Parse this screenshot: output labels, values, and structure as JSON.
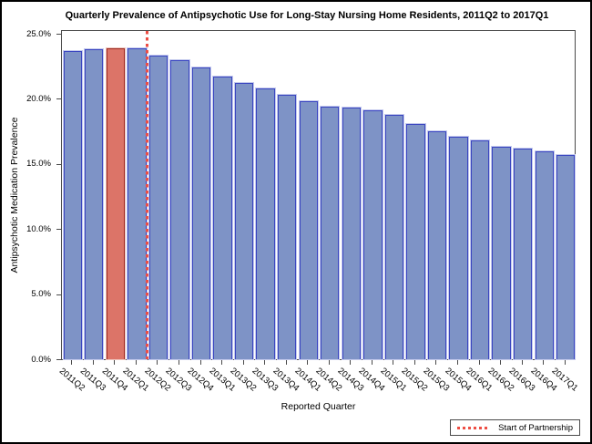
{
  "chart_data": {
    "type": "bar",
    "title": "Quarterly Prevalence of Antipsychotic Use for Long-Stay Nursing Home Residents, 2011Q2 to 2017Q1",
    "xlabel": "Reported Quarter",
    "ylabel": "Antipsychotic Medication Prevalence",
    "categories": [
      "2011Q2",
      "2011Q3",
      "2011Q4",
      "2012Q1",
      "2012Q2",
      "2012Q3",
      "2012Q4",
      "2013Q1",
      "2013Q2",
      "2013Q3",
      "2013Q4",
      "2014Q1",
      "2014Q2",
      "2014Q3",
      "2014Q4",
      "2015Q1",
      "2015Q2",
      "2015Q3",
      "2015Q4",
      "2016Q1",
      "2016Q2",
      "2016Q3",
      "2016Q4",
      "2017Q1"
    ],
    "values": [
      23.7,
      23.8,
      23.9,
      23.9,
      23.3,
      23.0,
      22.4,
      21.7,
      21.2,
      20.8,
      20.3,
      19.8,
      19.4,
      19.3,
      19.1,
      18.8,
      18.1,
      17.5,
      17.1,
      16.8,
      16.3,
      16.2,
      16.0,
      15.7
    ],
    "ylim": [
      0,
      25
    ],
    "ytick_values": [
      0,
      5,
      10,
      15,
      20,
      25
    ],
    "ytick_labels": [
      "0.0%",
      "5.0%",
      "10.0%",
      "15.0%",
      "20.0%",
      "25.0%"
    ],
    "grid": "off",
    "highlight": {
      "category": "2011Q4",
      "index": 2,
      "meaning": "baseline quarter shown in red"
    },
    "reference_line": {
      "type": "vertical-dotted",
      "after_category": "2012Q1",
      "after_index": 3,
      "label": "Start of Partnership"
    },
    "legend": {
      "position": "bottom-right",
      "entries": [
        {
          "symbol": "red-dotted-line",
          "label": "Start of Partnership"
        }
      ]
    },
    "colors": {
      "bar_fill": "#7e93c6",
      "bar_border": "#3a45c0",
      "highlight_fill": "#dc7468",
      "highlight_border": "#9e2a21",
      "reference_line": "#ee4e44",
      "frame": "#4a4a4a",
      "text": "#000000",
      "background": "#ffffff"
    }
  }
}
